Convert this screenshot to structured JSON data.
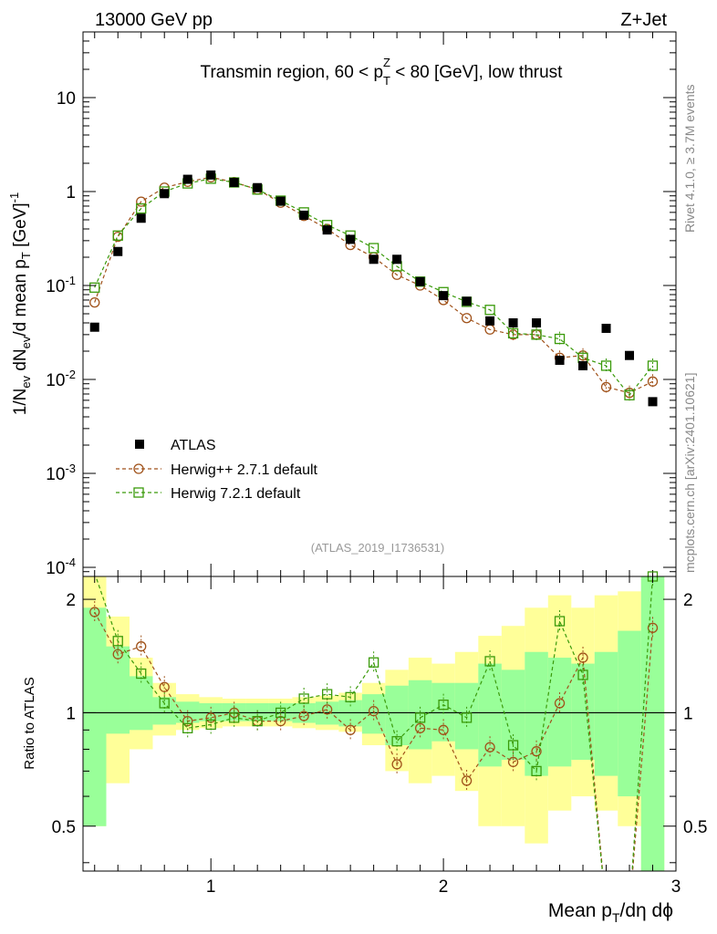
{
  "header": {
    "left": "13000 GeV pp",
    "right": "Z+Jet"
  },
  "side_labels": {
    "rivet": "Rivet 4.1.0, ≥ 3.7M events",
    "mcplots": "mcplots.cern.ch [arXiv:2401.10621]"
  },
  "colors": {
    "atlas": "#000000",
    "herwigpp": "#a0521a",
    "herwig7": "#3a9a0a",
    "band_outer": "#ffff99",
    "band_inner": "#99ff99"
  },
  "chart_data": {
    "type": "scatter",
    "title": "Transmin region, 60 < p_T^Z < 80 [GeV], low thrust",
    "xlabel": "Mean p_T/dη dϕ",
    "ylabel_top": "1/N_ev dN_ev/d mean p_T [GeV]^-1",
    "ylabel_bottom": "Ratio to ATLAS",
    "watermark": "(ATLAS_2019_I1736531)",
    "xlim": [
      0.45,
      3.0
    ],
    "ylim_top": [
      8e-05,
      50
    ],
    "ylim_bottom": [
      0.38,
      2.3
    ],
    "x_ticks": [
      "1",
      "2",
      "3"
    ],
    "y_ticks_top": [
      "10",
      "1",
      "10^-1",
      "10^-2",
      "10^-3",
      "10^-4"
    ],
    "y_ticks_bottom": [
      "2",
      "1",
      "0.5"
    ],
    "x": [
      0.5,
      0.6,
      0.7,
      0.8,
      0.9,
      1.0,
      1.1,
      1.2,
      1.3,
      1.4,
      1.5,
      1.6,
      1.7,
      1.8,
      1.9,
      2.0,
      2.1,
      2.2,
      2.3,
      2.4,
      2.5,
      2.6,
      2.7,
      2.8,
      2.9
    ],
    "legend": [
      "ATLAS",
      "Herwig++ 2.7.1 default",
      "Herwig 7.2.1 default"
    ],
    "series": [
      {
        "name": "ATLAS",
        "values": [
          0.036,
          0.23,
          0.52,
          0.95,
          1.35,
          1.5,
          1.25,
          1.1,
          0.79,
          0.56,
          0.39,
          0.31,
          0.19,
          0.19,
          0.11,
          0.078,
          0.068,
          0.042,
          0.04,
          0.04,
          0.016,
          0.014,
          0.035,
          0.018,
          0.0058
        ]
      },
      {
        "name": "Herwig++ 2.7.1 default",
        "values": [
          0.066,
          0.33,
          0.78,
          1.1,
          1.27,
          1.42,
          1.26,
          1.05,
          0.76,
          0.55,
          0.4,
          0.27,
          0.2,
          0.13,
          0.1,
          0.07,
          0.045,
          0.034,
          0.03,
          0.03,
          0.017,
          0.018,
          0.0083,
          0.0072,
          0.0095
        ]
      },
      {
        "name": "Herwig 7.2.1 default",
        "values": [
          0.095,
          0.34,
          0.66,
          1.0,
          1.22,
          1.37,
          1.25,
          1.05,
          0.8,
          0.6,
          0.44,
          0.34,
          0.25,
          0.16,
          0.11,
          0.085,
          0.067,
          0.055,
          0.031,
          0.03,
          0.027,
          0.017,
          0.014,
          0.0068,
          0.014
        ]
      }
    ],
    "ratio_series": [
      {
        "name": "Herwig++ 2.7.1 default",
        "values": [
          1.85,
          1.43,
          1.5,
          1.17,
          0.95,
          0.97,
          1.0,
          0.95,
          0.95,
          0.98,
          1.02,
          0.9,
          1.01,
          0.73,
          0.91,
          0.9,
          0.66,
          0.81,
          0.74,
          0.79,
          1.06,
          1.4,
          0.3,
          0.3,
          1.68
        ]
      },
      {
        "name": "Herwig 7.2.1 default",
        "values": [
          2.35,
          1.55,
          1.27,
          1.06,
          0.91,
          0.93,
          0.97,
          0.95,
          1.0,
          1.09,
          1.12,
          1.1,
          1.36,
          0.84,
          0.97,
          1.05,
          0.97,
          1.37,
          0.82,
          0.7,
          1.75,
          1.26,
          0.3,
          0.3,
          2.3
        ]
      }
    ],
    "band_outer": [
      [
        0.5,
        2.3
      ],
      [
        0.65,
        1.8
      ],
      [
        0.8,
        1.4
      ],
      [
        0.87,
        1.2
      ],
      [
        0.9,
        1.12
      ],
      [
        0.91,
        1.1
      ],
      [
        0.92,
        1.09
      ],
      [
        0.92,
        1.09
      ],
      [
        0.92,
        1.09
      ],
      [
        0.91,
        1.1
      ],
      [
        0.9,
        1.11
      ],
      [
        0.89,
        1.13
      ],
      [
        0.82,
        1.2
      ],
      [
        0.7,
        1.3
      ],
      [
        0.65,
        1.4
      ],
      [
        0.68,
        1.35
      ],
      [
        0.62,
        1.45
      ],
      [
        0.5,
        1.6
      ],
      [
        0.5,
        1.7
      ],
      [
        0.45,
        1.9
      ],
      [
        0.55,
        2.05
      ],
      [
        0.6,
        1.9
      ],
      [
        0.55,
        2.05
      ],
      [
        0.5,
        2.1
      ],
      [
        0.38,
        2.3
      ]
    ],
    "band_inner": [
      [
        0.5,
        1.9
      ],
      [
        0.88,
        1.5
      ],
      [
        0.9,
        1.25
      ],
      [
        0.93,
        1.1
      ],
      [
        0.94,
        1.07
      ],
      [
        0.95,
        1.06
      ],
      [
        0.95,
        1.06
      ],
      [
        0.95,
        1.06
      ],
      [
        0.95,
        1.06
      ],
      [
        0.94,
        1.06
      ],
      [
        0.93,
        1.07
      ],
      [
        0.92,
        1.08
      ],
      [
        0.88,
        1.12
      ],
      [
        0.82,
        1.18
      ],
      [
        0.8,
        1.22
      ],
      [
        0.84,
        1.2
      ],
      [
        0.8,
        1.2
      ],
      [
        0.72,
        1.35
      ],
      [
        0.75,
        1.3
      ],
      [
        0.68,
        1.45
      ],
      [
        0.72,
        1.4
      ],
      [
        0.75,
        1.35
      ],
      [
        0.68,
        1.45
      ],
      [
        0.6,
        1.65
      ],
      [
        0.38,
        2.3
      ]
    ]
  }
}
